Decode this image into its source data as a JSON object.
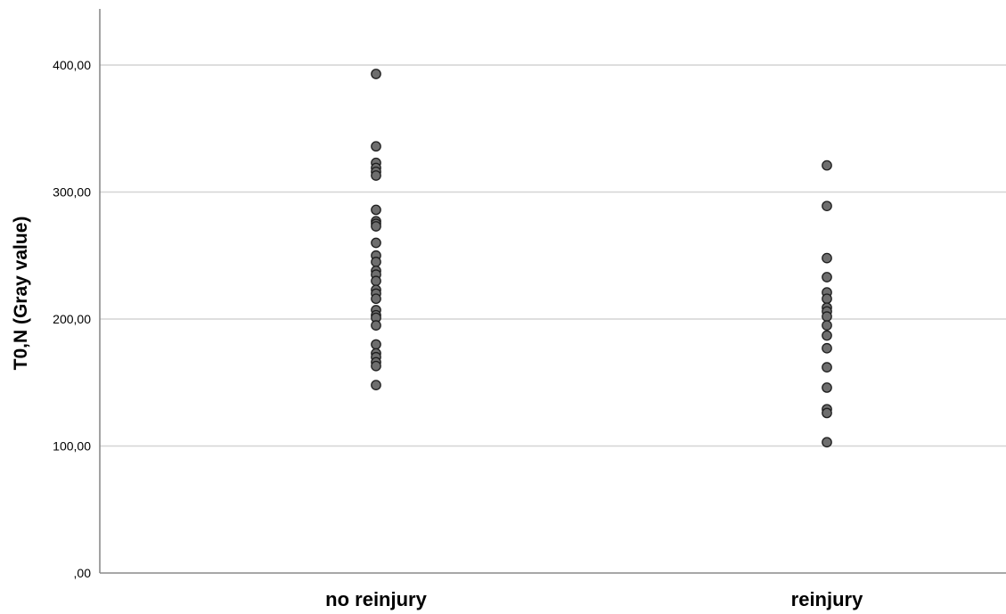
{
  "chart_data": {
    "type": "scatter",
    "ylabel": "T0,N (Gray value)",
    "xlabel": "",
    "categories": [
      "no reinjury",
      "reinjury"
    ],
    "ylim": [
      0,
      400
    ],
    "yticks": [
      0,
      100,
      200,
      300,
      400
    ],
    "ytick_labels": [
      ",00",
      "100,00",
      "200,00",
      "300,00",
      "400,00"
    ],
    "grid": true,
    "point_color": "#6e6e6e",
    "point_edge_color": "#1e1e1e",
    "series": [
      {
        "category": "no reinjury",
        "values": [
          393,
          336,
          323,
          319,
          316,
          313,
          286,
          277,
          275,
          273,
          260,
          250,
          245,
          238,
          235,
          230,
          223,
          220,
          216,
          207,
          203,
          201,
          195,
          180,
          173,
          170,
          166,
          163,
          148
        ]
      },
      {
        "category": "reinjury",
        "values": [
          321,
          289,
          248,
          233,
          221,
          216,
          209,
          206,
          202,
          195,
          187,
          177,
          162,
          146,
          129,
          126,
          103
        ]
      }
    ]
  }
}
